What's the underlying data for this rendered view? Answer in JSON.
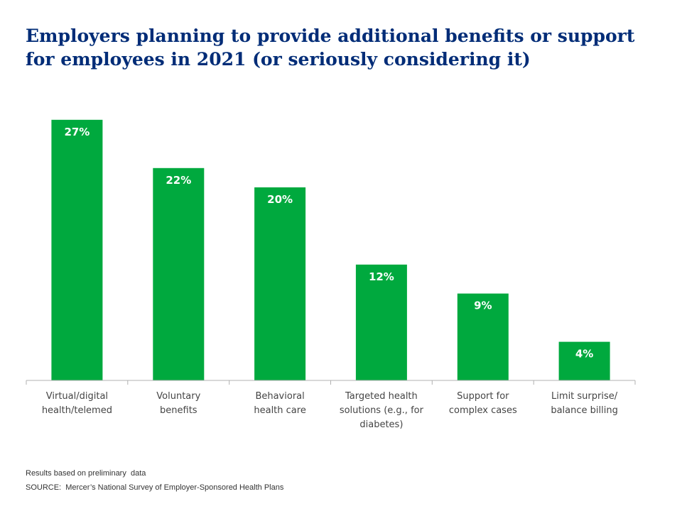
{
  "title_lines": [
    "Employers planning to provide additional benefits or support",
    "for employees in 2021 (or seriously considering it)"
  ],
  "footnotes": {
    "note": "Results based on preliminary  data",
    "source": "SOURCE:  Mercer’s National Survey of Employer-Sponsored Health Plans"
  },
  "colors": {
    "bar": "#00a93e",
    "title": "#002c77",
    "axis": "#b0b0b0",
    "label": "#444444",
    "value_label": "#ffffff"
  },
  "chart_data": {
    "type": "bar",
    "categories": [
      [
        "Virtual/digital",
        "health/telemed"
      ],
      [
        "Voluntary",
        "benefits"
      ],
      [
        "Behavioral",
        "health care"
      ],
      [
        "Targeted health",
        "solutions (e.g., for",
        "diabetes)"
      ],
      [
        "Support for",
        "complex cases"
      ],
      [
        "Limit surprise/",
        "balance billing"
      ]
    ],
    "values": [
      27,
      22,
      20,
      12,
      9,
      4
    ],
    "data_labels": [
      "27%",
      "22%",
      "20%",
      "12%",
      "9%",
      "4%"
    ],
    "ylim": [
      0,
      30
    ],
    "grid": false,
    "legend": "none"
  }
}
